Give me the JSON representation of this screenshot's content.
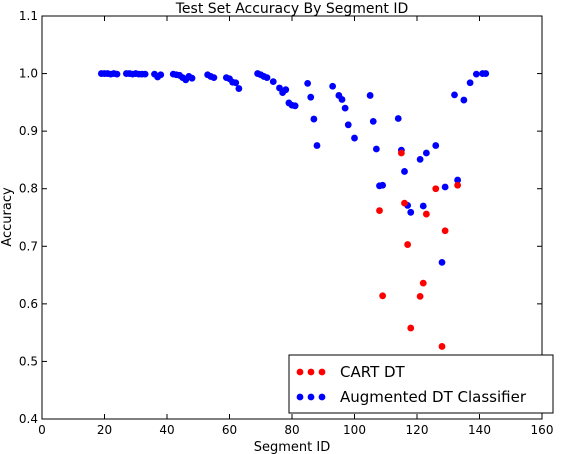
{
  "chart_data": {
    "type": "scatter",
    "title": "Test Set Accuracy By Segment ID",
    "xlabel": "Segment ID",
    "ylabel": "Accuracy",
    "xlim": [
      0,
      160
    ],
    "ylim": [
      0.4,
      1.1
    ],
    "x_ticks": [
      0,
      20,
      40,
      60,
      80,
      100,
      120,
      140,
      160
    ],
    "y_ticks": [
      0.4,
      0.5,
      0.6,
      0.7,
      0.8,
      0.9,
      1.0,
      1.1
    ],
    "x_tick_labels": [
      "0",
      "20",
      "40",
      "60",
      "80",
      "100",
      "120",
      "140",
      "160"
    ],
    "y_tick_labels": [
      "0.4",
      "0.5",
      "0.6",
      "0.7",
      "0.8",
      "0.9",
      "1.0",
      "1.1"
    ],
    "grid": false,
    "legend_position": "bottom-right",
    "series": [
      {
        "name": "CART DT",
        "color": "#ff0000",
        "points": [
          [
            108,
            0.762
          ],
          [
            109,
            0.614
          ],
          [
            115,
            0.862
          ],
          [
            116,
            0.775
          ],
          [
            117,
            0.703
          ],
          [
            118,
            0.558
          ],
          [
            121,
            0.613
          ],
          [
            122,
            0.636
          ],
          [
            123,
            0.756
          ],
          [
            126,
            0.8
          ],
          [
            128,
            0.526
          ],
          [
            129,
            0.727
          ],
          [
            133,
            0.806
          ]
        ]
      },
      {
        "name": "Augmented DT Classifier",
        "color": "#0000ff",
        "points": [
          [
            19,
            1.0
          ],
          [
            20,
            1.0
          ],
          [
            21,
            1.0
          ],
          [
            22,
            0.999
          ],
          [
            23,
            1.0
          ],
          [
            24,
            0.999
          ],
          [
            27,
            1.0
          ],
          [
            28,
            1.0
          ],
          [
            29,
            0.999
          ],
          [
            30,
            1.0
          ],
          [
            31,
            0.999
          ],
          [
            32,
            0.999
          ],
          [
            33,
            0.999
          ],
          [
            36,
            0.999
          ],
          [
            37,
            0.994
          ],
          [
            38,
            0.998
          ],
          [
            42,
            0.999
          ],
          [
            43,
            0.998
          ],
          [
            44,
            0.997
          ],
          [
            45,
            0.993
          ],
          [
            46,
            0.989
          ],
          [
            47,
            0.995
          ],
          [
            48,
            0.992
          ],
          [
            53,
            0.998
          ],
          [
            54,
            0.995
          ],
          [
            55,
            0.993
          ],
          [
            59,
            0.993
          ],
          [
            60,
            0.991
          ],
          [
            61,
            0.985
          ],
          [
            62,
            0.984
          ],
          [
            63,
            0.974
          ],
          [
            69,
            1.0
          ],
          [
            70,
            0.998
          ],
          [
            71,
            0.995
          ],
          [
            72,
            0.993
          ],
          [
            74,
            0.986
          ],
          [
            76,
            0.975
          ],
          [
            77,
            0.967
          ],
          [
            78,
            0.972
          ],
          [
            79,
            0.949
          ],
          [
            80,
            0.945
          ],
          [
            81,
            0.944
          ],
          [
            85,
            0.983
          ],
          [
            86,
            0.959
          ],
          [
            87,
            0.921
          ],
          [
            88,
            0.875
          ],
          [
            93,
            0.978
          ],
          [
            95,
            0.962
          ],
          [
            96,
            0.955
          ],
          [
            97,
            0.94
          ],
          [
            98,
            0.911
          ],
          [
            100,
            0.888
          ],
          [
            105,
            0.962
          ],
          [
            106,
            0.917
          ],
          [
            107,
            0.869
          ],
          [
            108,
            0.805
          ],
          [
            109,
            0.806
          ],
          [
            114,
            0.922
          ],
          [
            115,
            0.867
          ],
          [
            116,
            0.83
          ],
          [
            117,
            0.771
          ],
          [
            118,
            0.759
          ],
          [
            121,
            0.851
          ],
          [
            122,
            0.77
          ],
          [
            123,
            0.862
          ],
          [
            126,
            0.875
          ],
          [
            128,
            0.672
          ],
          [
            129,
            0.803
          ],
          [
            132,
            0.963
          ],
          [
            133,
            0.815
          ],
          [
            135,
            0.954
          ],
          [
            137,
            0.984
          ],
          [
            139,
            0.999
          ],
          [
            141,
            1.0
          ],
          [
            142,
            1.0
          ]
        ]
      }
    ]
  }
}
